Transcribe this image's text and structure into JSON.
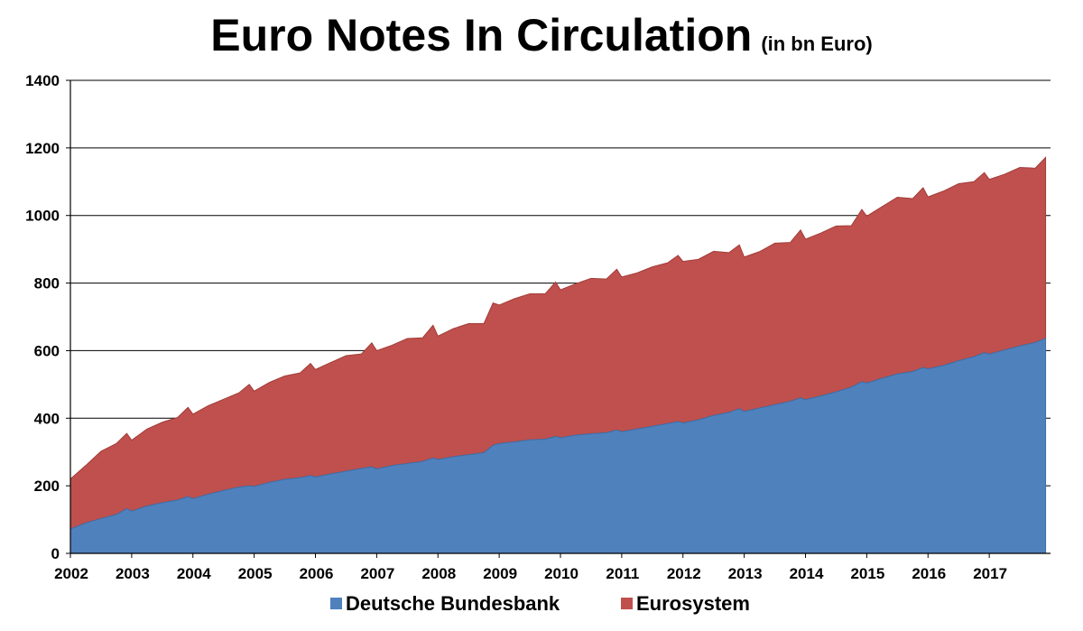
{
  "chart_data": {
    "type": "area",
    "stacked": true,
    "title": "Euro Notes In Circulation",
    "subtitle": "(in bn Euro)",
    "xlabel": "",
    "ylabel": "",
    "xlim": [
      2002.0,
      2018.0
    ],
    "ylim": [
      0,
      1400
    ],
    "yticks": [
      "0",
      "200",
      "400",
      "600",
      "800",
      "1000",
      "1200",
      "1400"
    ],
    "xticks": [
      "2002",
      "2003",
      "2004",
      "2005",
      "2006",
      "2007",
      "2008",
      "2009",
      "2010",
      "2011",
      "2012",
      "2013",
      "2014",
      "2015",
      "2016",
      "2017"
    ],
    "grid": true,
    "legend_position": "bottom",
    "x": [
      2002.0,
      2002.25,
      2002.5,
      2002.75,
      2002.92,
      2003.0,
      2003.25,
      2003.5,
      2003.75,
      2003.92,
      2004.0,
      2004.25,
      2004.5,
      2004.75,
      2004.92,
      2005.0,
      2005.25,
      2005.5,
      2005.75,
      2005.92,
      2006.0,
      2006.25,
      2006.5,
      2006.75,
      2006.92,
      2007.0,
      2007.25,
      2007.5,
      2007.75,
      2007.92,
      2008.0,
      2008.25,
      2008.5,
      2008.75,
      2008.9,
      2009.0,
      2009.25,
      2009.5,
      2009.75,
      2009.92,
      2010.0,
      2010.25,
      2010.5,
      2010.75,
      2010.92,
      2011.0,
      2011.25,
      2011.5,
      2011.75,
      2011.92,
      2012.0,
      2012.25,
      2012.5,
      2012.75,
      2012.92,
      2013.0,
      2013.25,
      2013.5,
      2013.75,
      2013.92,
      2014.0,
      2014.25,
      2014.5,
      2014.75,
      2014.92,
      2015.0,
      2015.25,
      2015.5,
      2015.75,
      2015.92,
      2016.0,
      2016.25,
      2016.5,
      2016.75,
      2016.92,
      2017.0,
      2017.25,
      2017.5,
      2017.75,
      2017.92
    ],
    "series": [
      {
        "name": "Deutsche Bundesbank",
        "color": "#4f81bd",
        "values": [
          72,
          90,
          103,
          115,
          132,
          125,
          140,
          150,
          158,
          168,
          162,
          175,
          186,
          196,
          200,
          198,
          210,
          219,
          224,
          230,
          226,
          235,
          243,
          251,
          256,
          250,
          260,
          266,
          272,
          282,
          278,
          286,
          292,
          298,
          320,
          325,
          330,
          336,
          338,
          346,
          342,
          350,
          354,
          357,
          365,
          360,
          368,
          376,
          384,
          390,
          386,
          395,
          408,
          417,
          428,
          420,
          430,
          440,
          450,
          460,
          455,
          466,
          478,
          492,
          508,
          504,
          518,
          531,
          538,
          550,
          546,
          556,
          570,
          582,
          594,
          590,
          602,
          614,
          624,
          636
        ]
      },
      {
        "name": "Eurosystem",
        "color": "#c0504d",
        "values": [
          148,
          170,
          199,
          210,
          223,
          210,
          228,
          238,
          244,
          264,
          250,
          262,
          270,
          279,
          300,
          282,
          296,
          306,
          310,
          332,
          318,
          330,
          342,
          339,
          367,
          350,
          356,
          370,
          366,
          393,
          365,
          379,
          388,
          382,
          421,
          410,
          424,
          432,
          430,
          457,
          438,
          448,
          460,
          455,
          476,
          458,
          462,
          472,
          476,
          492,
          478,
          475,
          486,
          473,
          485,
          457,
          463,
          478,
          470,
          497,
          475,
          482,
          491,
          478,
          510,
          494,
          508,
          523,
          512,
          532,
          509,
          516,
          524,
          518,
          533,
          517,
          520,
          528,
          516,
          536
        ]
      }
    ]
  }
}
